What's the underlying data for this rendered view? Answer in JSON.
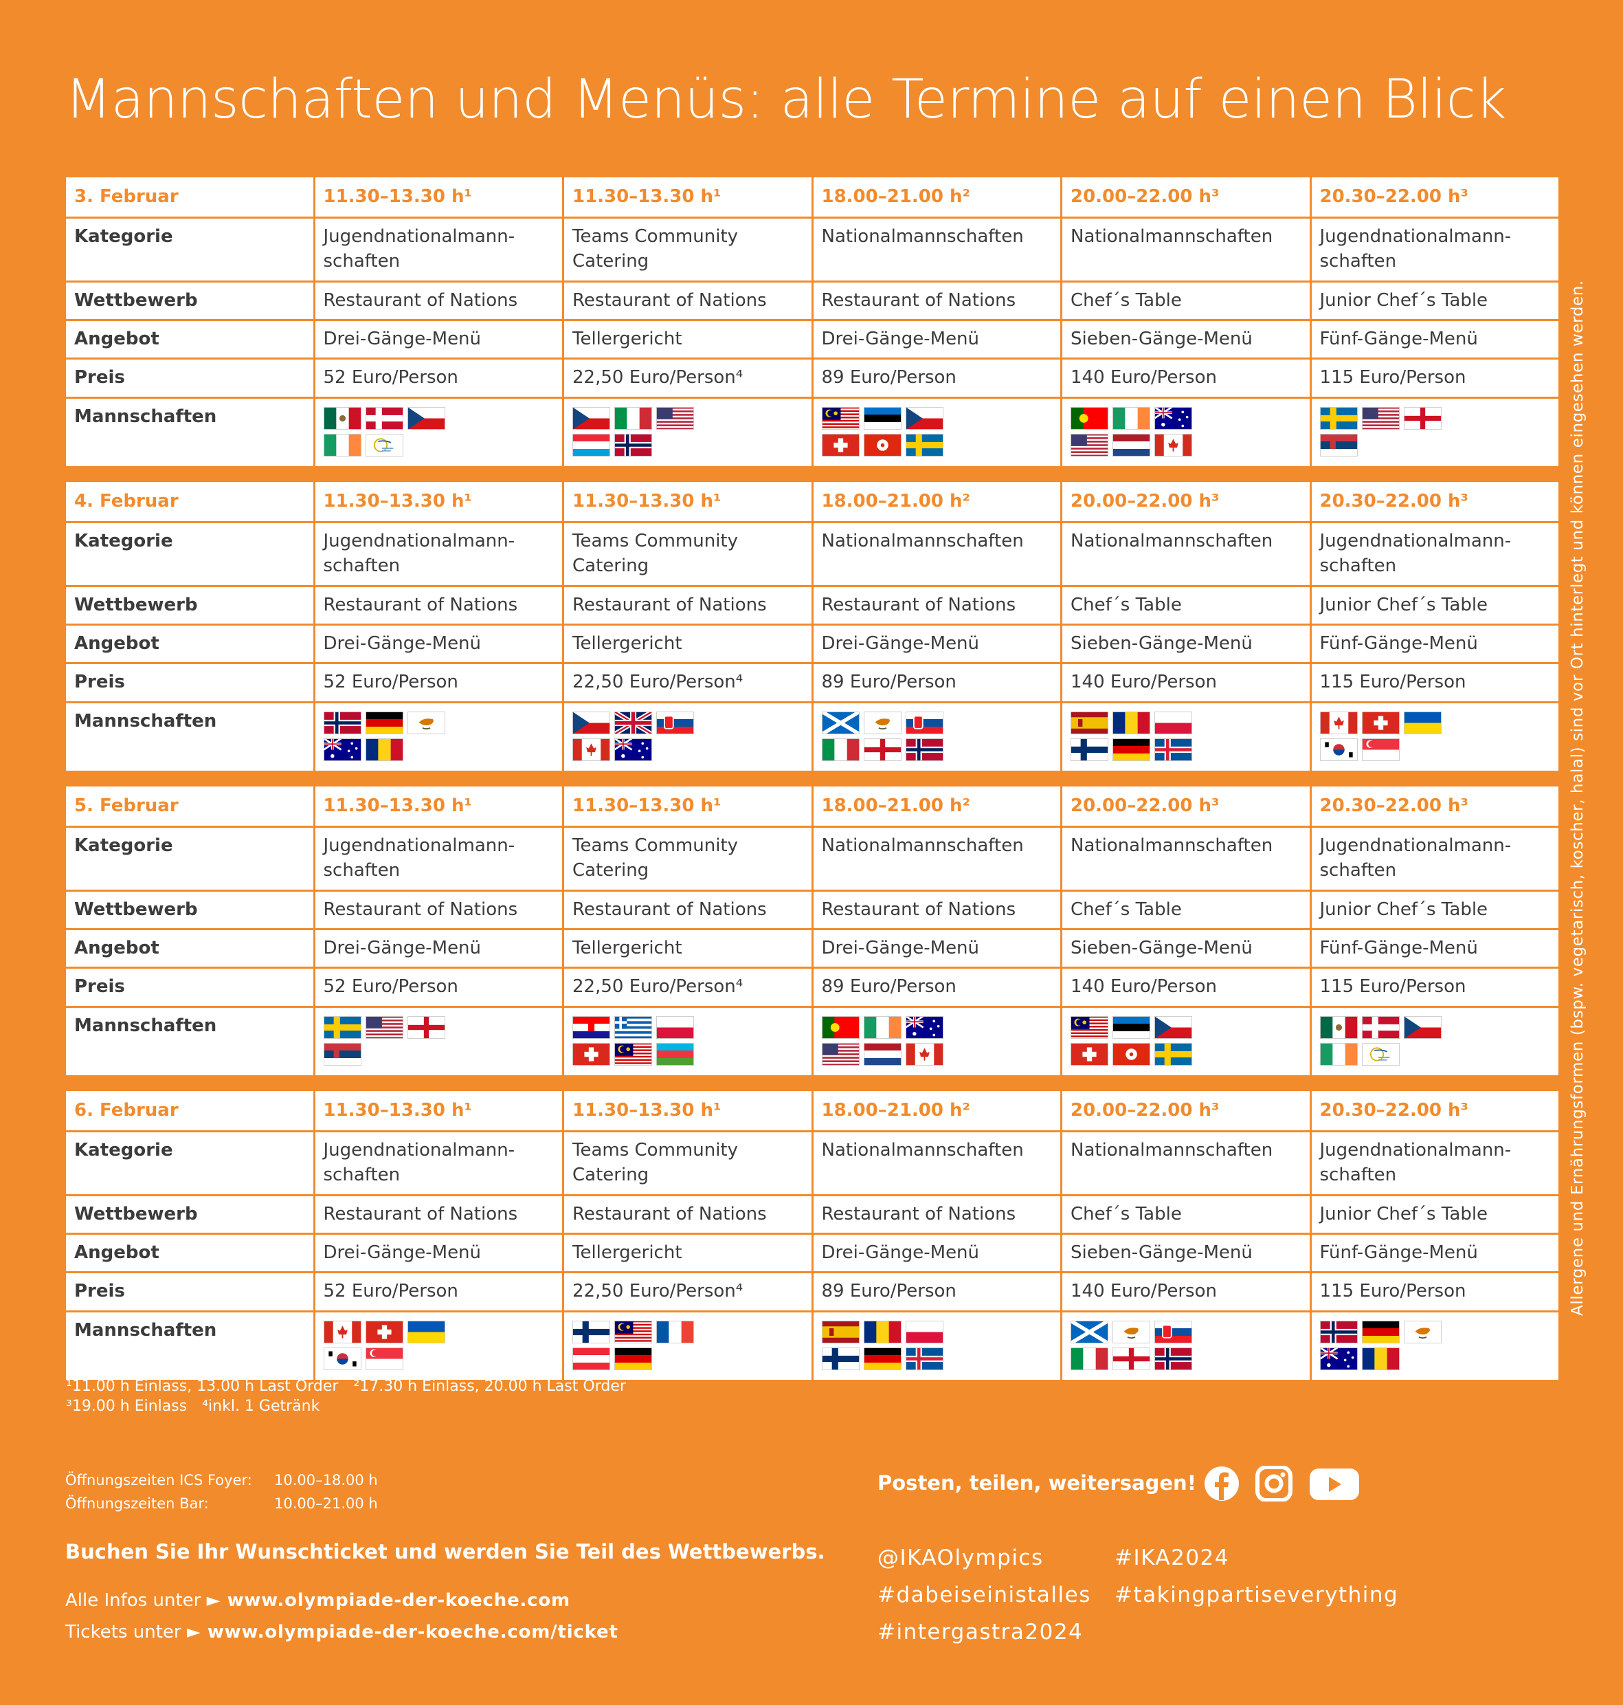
{
  "title": "Mannschaften und Menüs: alle Termine auf einen Blick",
  "days": [
    {
      "header": [
        "3. Februar",
        "11.30–13.30 h¹",
        "11.30–13.30 h¹",
        "18.00–21.00 h²",
        "20.00–22.00 h³",
        "20.30–22.00 h³"
      ],
      "rows": [
        [
          "Kategorie",
          "Jugendnationalmann-schaften",
          "Teams Community Catering",
          "Nationalmannschaften",
          "Nationalmannschaften",
          "Jugendnationalmann-schaften"
        ],
        [
          "Wettbewerb",
          "Restaurant of Nations",
          "Restaurant of Nations",
          "Restaurant of Nations",
          "Chef´s Table",
          "Junior Chef´s Table"
        ],
        [
          "Angebot",
          "Drei-Gänge-Menü",
          "Tellergericht",
          "Drei-Gänge-Menü",
          "Sieben-Gänge-Menü",
          "Fünf-Gänge-Menü"
        ],
        [
          "Preis",
          "52 Euro/Person",
          "22,50 Euro/Person⁴",
          "89 Euro/Person",
          "140 Euro/Person",
          "115 Euro/Person"
        ]
      ],
      "teams_label": "Mannschaften"
    },
    {
      "header": [
        "4. Februar",
        "11.30–13.30 h¹",
        "11.30–13.30 h¹",
        "18.00–21.00 h²",
        "20.00–22.00 h³",
        "20.30–22.00 h³"
      ],
      "rows": [
        [
          "Kategorie",
          "Jugendnationalmann-schaften",
          "Teams Community Catering",
          "Nationalmannschaften",
          "Nationalmannschaften",
          "Jugendnationalmann-schaften"
        ],
        [
          "Wettbewerb",
          "Restaurant of Nations",
          "Restaurant of Nations",
          "Restaurant of Nations",
          "Chef´s Table",
          "Junior Chef´s Table"
        ],
        [
          "Angebot",
          "Drei-Gänge-Menü",
          "Tellergericht",
          "Drei-Gänge-Menü",
          "Sieben-Gänge-Menü",
          "Fünf-Gänge-Menü"
        ],
        [
          "Preis",
          "52 Euro/Person",
          "22,50 Euro/Person⁴",
          "89 Euro/Person",
          "140 Euro/Person",
          "115 Euro/Person"
        ]
      ],
      "teams_label": "Mannschaften"
    },
    {
      "header": [
        "5. Februar",
        "11.30–13.30 h¹",
        "11.30–13.30 h¹",
        "18.00–21.00 h²",
        "20.00–22.00 h³",
        "20.30–22.00 h³"
      ],
      "rows": [
        [
          "Kategorie",
          "Jugendnationalmann-schaften",
          "Teams Community Catering",
          "Nationalmannschaften",
          "Nationalmannschaften",
          "Jugendnationalmann-schaften"
        ],
        [
          "Wettbewerb",
          "Restaurant of Nations",
          "Restaurant of Nations",
          "Restaurant of Nations",
          "Chef´s Table",
          "Junior Chef´s Table"
        ],
        [
          "Angebot",
          "Drei-Gänge-Menü",
          "Tellergericht",
          "Drei-Gänge-Menü",
          "Sieben-Gänge-Menü",
          "Fünf-Gänge-Menü"
        ],
        [
          "Preis",
          "52 Euro/Person",
          "22,50 Euro/Person⁴",
          "89 Euro/Person",
          "140 Euro/Person",
          "115 Euro/Person"
        ]
      ],
      "teams_label": "Mannschaften"
    },
    {
      "header": [
        "6. Februar",
        "11.30–13.30 h¹",
        "11.30–13.30 h¹",
        "18.00–21.00 h²",
        "20.00–22.00 h³",
        "20.30–22.00 h³"
      ],
      "rows": [
        [
          "Kategorie",
          "Jugendnationalmann-schaften",
          "Teams Community Catering",
          "Nationalmannschaften",
          "Nationalmannschaften",
          "Jugendnationalmann-schaften"
        ],
        [
          "Wettbewerb",
          "Restaurant of Nations",
          "Restaurant of Nations",
          "Restaurant of Nations",
          "Chef´s Table",
          "Junior Chef´s Table"
        ],
        [
          "Angebot",
          "Drei-Gänge-Menü",
          "Tellergericht",
          "Drei-Gänge-Menü",
          "Sieben-Gänge-Menü",
          "Fünf-Gänge-Menü"
        ],
        [
          "Preis",
          "52 Euro/Person",
          "22,50 Euro/Person⁴",
          "89 Euro/Person",
          "140 Euro/Person",
          "115 Euro/Person"
        ]
      ],
      "teams_label": "Mannschaften"
    }
  ],
  "footnotes": [
    "¹11.00 h Einlass, 13.00 h Last Order",
    "²17.30 h Einlass, 20.00 h Last Order",
    "³19.00 h Einlass",
    "⁴inkl. 1 Getränk"
  ],
  "side_note": "Allergene und Ernährungsformen (bspw. vegetarisch, koscher, halal) sind vor Ort hinterlegt und können eingesehen werden.",
  "hours": [
    {
      "label": "Öffnungszeiten ICS Foyer:",
      "value": "10.00–18.00 h"
    },
    {
      "label": "Öffnungszeiten Bar:",
      "value": "10.00–21.00 h"
    }
  ],
  "cta": "Buchen Sie Ihr Wunschticket und werden Sie Teil des Wettbewerbs.",
  "links": [
    {
      "label": "Alle Infos unter ►",
      "url": "www.olympiade-der-koeche.com"
    },
    {
      "label": "Tickets unter ►",
      "url": "www.olympiade-der-koeche.com/ticket"
    }
  ],
  "social": {
    "heading": "Posten, teilen, weitersagen!",
    "tags": [
      "@IKAOlympics",
      "#IKA2024",
      "#dabeiseinistalles",
      "#takingpartiseverything",
      "#intergastra2024"
    ]
  }
}
